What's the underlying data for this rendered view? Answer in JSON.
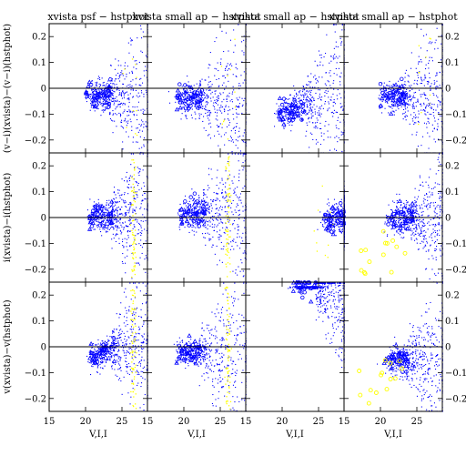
{
  "figure": {
    "xlabel": "V,I,I",
    "row_ylabels": [
      "(v−i)(xvista)−(v−i)(hstphot)",
      "i(xvista)−i(hstphot)",
      "v(xvista)−v(hstphot)"
    ],
    "col_titles": [
      "xvista psf − hstphot",
      "xvista small ap − hstphot",
      "xvista small ap − hstphot",
      "xvista small ap − hstphot"
    ],
    "xticks": [
      "15",
      "20",
      "25"
    ],
    "yticks": [
      "0.2",
      "0.1",
      "0",
      "−0.1",
      "−0.2"
    ],
    "right_yticks": [
      "0.2",
      "0.1",
      "0",
      "−0.1",
      "−0.2"
    ]
  },
  "chart_data": {
    "type": "scatter",
    "layout": "3 rows × 4 columns of scatter panels with shared axes",
    "xlim": [
      15,
      28.5
    ],
    "ylim": [
      -0.25,
      0.25
    ],
    "reference_line_y": 0,
    "series": [
      {
        "name": "",
        "color": "#0000ff",
        "marker": "small dots and open triangles/circles"
      },
      {
        "name": "",
        "color": "#ffff00",
        "marker": "small dots and open circles"
      }
    ],
    "panels": [
      {
        "row": 0,
        "col": 0,
        "blue_center": [
          22.0,
          -0.03
        ],
        "trend": "flat",
        "blue_spread_y": 0.05,
        "yellow": "sparse, x 25–27",
        "note": "outliers rise at faint end"
      },
      {
        "row": 0,
        "col": 1,
        "blue_center": [
          21.0,
          -0.04
        ],
        "trend": "flat",
        "blue_spread_y": 0.05,
        "yellow": "sparse, x 25–27"
      },
      {
        "row": 0,
        "col": 2,
        "blue_center": [
          21.5,
          -0.08
        ],
        "trend": "rising",
        "blue_spread_y": 0.05,
        "yellow": "none"
      },
      {
        "row": 0,
        "col": 3,
        "blue_center": [
          22.0,
          -0.03
        ],
        "trend": "flat",
        "blue_spread_y": 0.05,
        "yellow": "sparse, x 25–27"
      },
      {
        "row": 1,
        "col": 0,
        "blue_center": [
          22.5,
          0.01
        ],
        "trend": "flat",
        "blue_spread_y": 0.05,
        "yellow": "dense vertical band near x 26.5"
      },
      {
        "row": 1,
        "col": 1,
        "blue_center": [
          21.5,
          0.02
        ],
        "trend": "flat",
        "blue_spread_y": 0.06,
        "yellow": "band near x 26"
      },
      {
        "row": 1,
        "col": 2,
        "blue_center": [
          27.5,
          0.0
        ],
        "trend": "flat",
        "blue_spread_y": 0.05,
        "yellow": "sparse, x 24–27"
      },
      {
        "row": 1,
        "col": 3,
        "blue_center": [
          23.0,
          0.0
        ],
        "trend": "flat",
        "blue_spread_y": 0.06,
        "yellow": "circles below zero, x 17–24"
      },
      {
        "row": 2,
        "col": 0,
        "blue_center": [
          22.5,
          -0.02
        ],
        "trend": "rising",
        "blue_spread_y": 0.05,
        "yellow": "vertical band near x 26.5"
      },
      {
        "row": 2,
        "col": 1,
        "blue_center": [
          21.0,
          -0.02
        ],
        "trend": "flat",
        "blue_spread_y": 0.04,
        "yellow": "band near x 26"
      },
      {
        "row": 2,
        "col": 2,
        "blue_center": [
          23.5,
          0.24
        ],
        "trend": "falling",
        "blue_spread_y": 0.06,
        "yellow": "none",
        "note": "cluster pinned at top of panel"
      },
      {
        "row": 2,
        "col": 3,
        "blue_center": [
          22.5,
          -0.05
        ],
        "trend": "flat",
        "blue_spread_y": 0.05,
        "yellow": "circles below zero, x 17–23"
      }
    ]
  }
}
